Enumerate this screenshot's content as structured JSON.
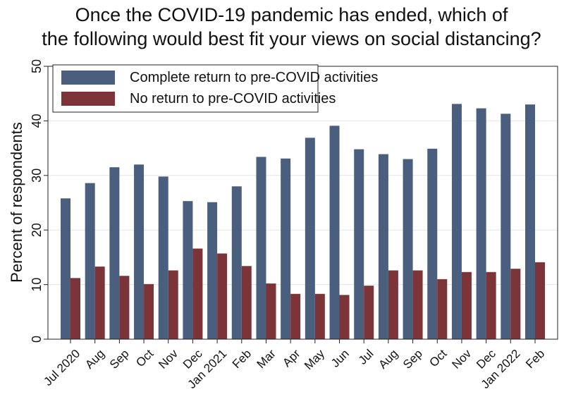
{
  "chart_data": {
    "type": "bar",
    "title_lines": [
      "Once the COVID-19 pandemic has ended, which of",
      "the following would best fit your views on social distancing?"
    ],
    "xlabel": "",
    "ylabel": "Percent of respondents",
    "ylim": [
      0,
      50
    ],
    "yticks": [
      0,
      10,
      20,
      30,
      40,
      50
    ],
    "grid": true,
    "legend_position": "top",
    "categories": [
      "Jul 2020",
      "Aug",
      "Sep",
      "Oct",
      "Nov",
      "Dec",
      "Jan 2021",
      "Feb",
      "Mar",
      "Apr",
      "May",
      "Jun",
      "Jul",
      "Aug",
      "Sep",
      "Oct",
      "Nov",
      "Dec",
      "Jan 2022",
      "Feb"
    ],
    "series": [
      {
        "name": "Complete return to pre-COVID activities",
        "color": "#4a5e7e",
        "values": [
          25.8,
          28.6,
          31.5,
          32.0,
          29.8,
          25.3,
          25.1,
          28.0,
          33.4,
          33.1,
          36.9,
          39.1,
          34.8,
          33.9,
          33.0,
          34.9,
          43.1,
          42.3,
          41.3,
          43.0
        ]
      },
      {
        "name": "No return to pre-COVID activities",
        "color": "#7c3438",
        "values": [
          11.2,
          13.3,
          11.6,
          10.1,
          12.6,
          16.6,
          15.7,
          13.4,
          10.2,
          8.3,
          8.3,
          8.1,
          9.8,
          12.6,
          12.6,
          11.0,
          12.3,
          12.3,
          12.9,
          14.1
        ]
      }
    ]
  }
}
